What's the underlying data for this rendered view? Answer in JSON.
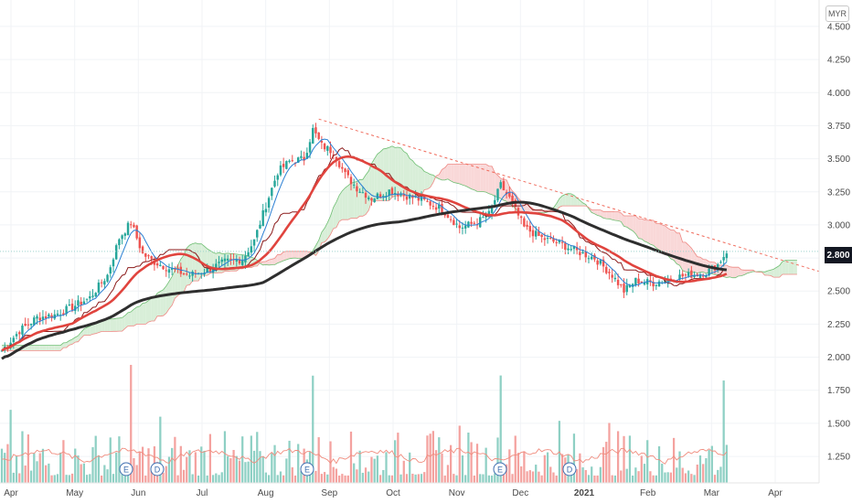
{
  "currency": "MYR",
  "current_price": "2.800",
  "chart_data": {
    "type": "candlestick",
    "ylim": [
      1.05,
      4.7
    ],
    "y_ticks": [
      "1.250",
      "1.500",
      "1.750",
      "2.000",
      "2.250",
      "2.500",
      "2.750",
      "3.000",
      "3.250",
      "3.500",
      "3.750",
      "4.000",
      "4.250",
      "4.500"
    ],
    "x_ticks": [
      "Apr",
      "May",
      "Jun",
      "Jul",
      "Aug",
      "Sep",
      "Oct",
      "Nov",
      "Dec",
      "2021",
      "Feb",
      "Mar",
      "Apr"
    ],
    "price_keypoints": [
      [
        0,
        2.05
      ],
      [
        6,
        2.2
      ],
      [
        12,
        2.3
      ],
      [
        18,
        2.32
      ],
      [
        24,
        2.38
      ],
      [
        30,
        2.45
      ],
      [
        36,
        2.62
      ],
      [
        40,
        2.9
      ],
      [
        44,
        3.02
      ],
      [
        48,
        2.78
      ],
      [
        52,
        2.72
      ],
      [
        58,
        2.66
      ],
      [
        64,
        2.62
      ],
      [
        70,
        2.66
      ],
      [
        76,
        2.72
      ],
      [
        82,
        2.74
      ],
      [
        86,
        2.88
      ],
      [
        90,
        3.15
      ],
      [
        94,
        3.4
      ],
      [
        98,
        3.48
      ],
      [
        103,
        3.5
      ],
      [
        106,
        3.72
      ],
      [
        109,
        3.6
      ],
      [
        113,
        3.55
      ],
      [
        117,
        3.38
      ],
      [
        121,
        3.28
      ],
      [
        126,
        3.2
      ],
      [
        132,
        3.26
      ],
      [
        138,
        3.22
      ],
      [
        144,
        3.18
      ],
      [
        150,
        3.12
      ],
      [
        156,
        2.98
      ],
      [
        162,
        3.02
      ],
      [
        166,
        3.08
      ],
      [
        170,
        3.3
      ],
      [
        173,
        3.2
      ],
      [
        178,
        2.98
      ],
      [
        184,
        2.9
      ],
      [
        190,
        2.86
      ],
      [
        196,
        2.8
      ],
      [
        202,
        2.75
      ],
      [
        208,
        2.62
      ],
      [
        212,
        2.5
      ],
      [
        216,
        2.58
      ],
      [
        222,
        2.56
      ],
      [
        228,
        2.6
      ],
      [
        234,
        2.62
      ],
      [
        240,
        2.64
      ],
      [
        244,
        2.7
      ],
      [
        247,
        2.8
      ]
    ],
    "volume_max_label_ticks": [
      "1.250",
      "1.500",
      "1.750"
    ],
    "series": [
      {
        "name": "",
        "color": "#2e2e2e"
      },
      {
        "name": "",
        "color": "#e0443e"
      },
      {
        "name": "",
        "color": "#2a7fd3"
      },
      {
        "name": "",
        "color": "#8b1a1a"
      }
    ],
    "trendline_color": "#f06b5c",
    "up_color": "#26a69a",
    "down_color": "#ef5350",
    "cloud_bull": "#d8eed8",
    "cloud_bear": "#f9d8d8",
    "event_markers": [
      "E",
      "D",
      "E",
      "E",
      "D"
    ],
    "grid": true
  }
}
